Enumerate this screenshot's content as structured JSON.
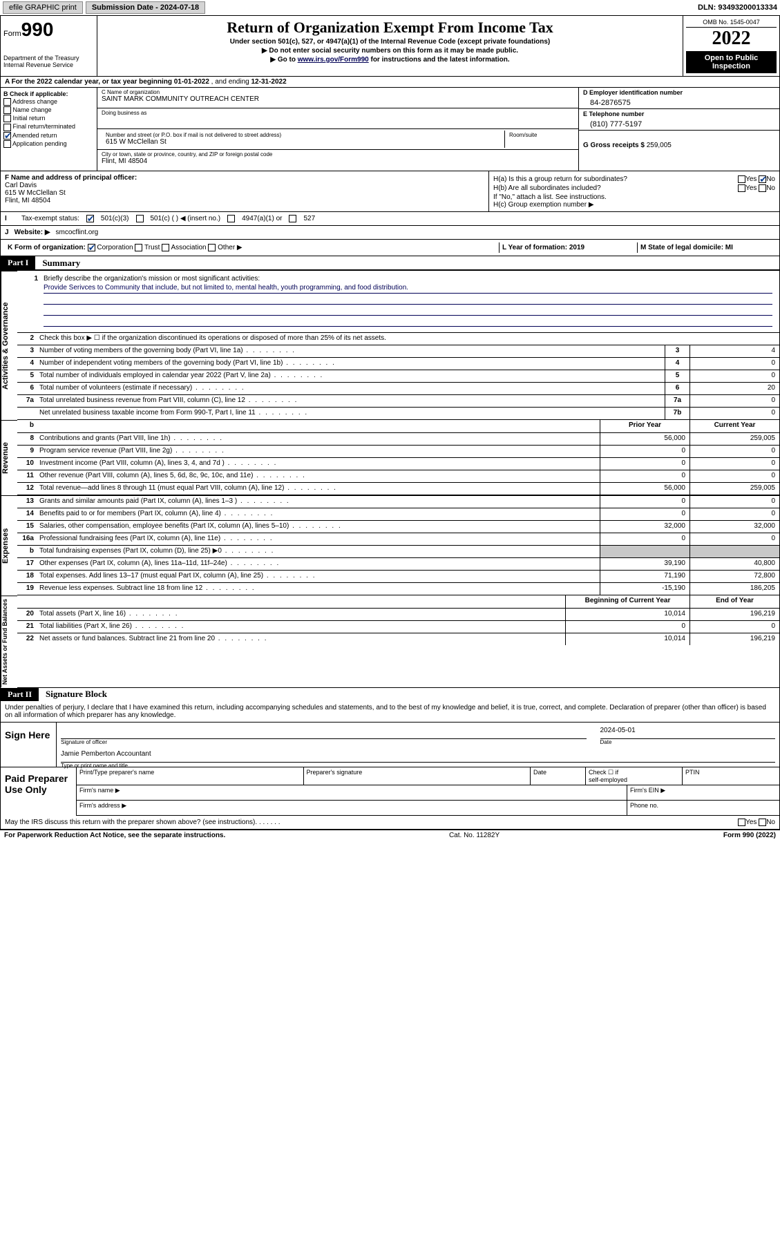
{
  "topbar": {
    "efile": "efile GRAPHIC print",
    "sub_label": "Submission Date - 2024-07-18",
    "dln": "DLN: 93493200013334"
  },
  "header": {
    "form_word": "Form",
    "form_num": "990",
    "dept": "Department of the Treasury\nInternal Revenue Service",
    "title": "Return of Organization Exempt From Income Tax",
    "sub1": "Under section 501(c), 527, or 4947(a)(1) of the Internal Revenue Code (except private foundations)",
    "sub2": "▶ Do not enter social security numbers on this form as it may be made public.",
    "sub3_pre": "▶ Go to ",
    "sub3_link": "www.irs.gov/Form990",
    "sub3_post": " for instructions and the latest information.",
    "omb": "OMB No. 1545-0047",
    "year": "2022",
    "open": "Open to Public Inspection"
  },
  "lineA": {
    "pre": "A For the 2022 calendar year, or tax year beginning ",
    "begin": "01-01-2022",
    "mid": " , and ending ",
    "end": "12-31-2022"
  },
  "B": {
    "hdr": "B Check if applicable:",
    "opts": [
      "Address change",
      "Name change",
      "Initial return",
      "Final return/terminated",
      "Amended return",
      "Application pending"
    ],
    "checked_idx": 4
  },
  "C": {
    "lbl_name": "C Name of organization",
    "name": "SAINT MARK COMMUNITY OUTREACH CENTER",
    "lbl_dba": "Doing business as",
    "lbl_street": "Number and street (or P.O. box if mail is not delivered to street address)",
    "street": "615 W McClellan St",
    "lbl_room": "Room/suite",
    "lbl_city": "City or town, state or province, country, and ZIP or foreign postal code",
    "city": "Flint, MI  48504"
  },
  "D": {
    "lbl": "D Employer identification number",
    "val": "84-2876575"
  },
  "E": {
    "lbl": "E Telephone number",
    "val": "(810) 777-5197"
  },
  "G": {
    "lbl": "G Gross receipts $",
    "val": "259,005"
  },
  "F": {
    "lbl": "F Name and address of principal officer:",
    "name": "Carl Davis",
    "addr1": "615 W McClellan St",
    "addr2": "Flint, MI  48504"
  },
  "H": {
    "ha": "H(a)  Is this a group return for subordinates?",
    "hb": "H(b)  Are all subordinates included?",
    "hb_note": "If \"No,\" attach a list. See instructions.",
    "hc": "H(c)  Group exemption number ▶",
    "yes": "Yes",
    "no": "No"
  },
  "I": {
    "lead": "I",
    "label": "Tax-exempt status:",
    "o1": "501(c)(3)",
    "o2": "501(c) (   ) ◀ (insert no.)",
    "o3": "4947(a)(1) or",
    "o4": "527"
  },
  "J": {
    "lead": "J",
    "label": "Website: ▶",
    "val": "smcocflint.org"
  },
  "K": {
    "label": "K Form of organization:",
    "o1": "Corporation",
    "o2": "Trust",
    "o3": "Association",
    "o4": "Other ▶",
    "L": "L Year of formation: 2019",
    "M": "M State of legal domicile: MI"
  },
  "partI": {
    "tag": "Part I",
    "title": "Summary"
  },
  "mission": {
    "num": "1",
    "lead": "Briefly describe the organization's mission or most significant activities:",
    "text": "Provide Serivces to Community that include, but not limited to, mental health, youth programming, and food distribution."
  },
  "line2": {
    "num": "2",
    "text": "Check this box ▶ ☐  if the organization discontinued its operations or disposed of more than 25% of its net assets."
  },
  "gov_rows": [
    {
      "n": "3",
      "d": "Number of voting members of the governing body (Part VI, line 1a)",
      "c": "3",
      "v": "4"
    },
    {
      "n": "4",
      "d": "Number of independent voting members of the governing body (Part VI, line 1b)",
      "c": "4",
      "v": "0"
    },
    {
      "n": "5",
      "d": "Total number of individuals employed in calendar year 2022 (Part V, line 2a)",
      "c": "5",
      "v": "0"
    },
    {
      "n": "6",
      "d": "Total number of volunteers (estimate if necessary)",
      "c": "6",
      "v": "20"
    },
    {
      "n": "7a",
      "d": "Total unrelated business revenue from Part VIII, column (C), line 12",
      "c": "7a",
      "v": "0"
    },
    {
      "n": "",
      "d": "Net unrelated business taxable income from Form 990-T, Part I, line 11",
      "c": "7b",
      "v": "0"
    }
  ],
  "two_col_hdr": {
    "b": "b",
    "prior": "Prior Year",
    "curr": "Current Year"
  },
  "rev_rows": [
    {
      "n": "8",
      "d": "Contributions and grants (Part VIII, line 1h)",
      "p": "56,000",
      "c": "259,005"
    },
    {
      "n": "9",
      "d": "Program service revenue (Part VIII, line 2g)",
      "p": "0",
      "c": "0"
    },
    {
      "n": "10",
      "d": "Investment income (Part VIII, column (A), lines 3, 4, and 7d )",
      "p": "0",
      "c": "0"
    },
    {
      "n": "11",
      "d": "Other revenue (Part VIII, column (A), lines 5, 6d, 8c, 9c, 10c, and 11e)",
      "p": "0",
      "c": "0"
    },
    {
      "n": "12",
      "d": "Total revenue—add lines 8 through 11 (must equal Part VIII, column (A), line 12)",
      "p": "56,000",
      "c": "259,005"
    }
  ],
  "exp_rows": [
    {
      "n": "13",
      "d": "Grants and similar amounts paid (Part IX, column (A), lines 1–3 )",
      "p": "0",
      "c": "0"
    },
    {
      "n": "14",
      "d": "Benefits paid to or for members (Part IX, column (A), line 4)",
      "p": "0",
      "c": "0"
    },
    {
      "n": "15",
      "d": "Salaries, other compensation, employee benefits (Part IX, column (A), lines 5–10)",
      "p": "32,000",
      "c": "32,000"
    },
    {
      "n": "16a",
      "d": "Professional fundraising fees (Part IX, column (A), line 11e)",
      "p": "0",
      "c": "0"
    },
    {
      "n": "b",
      "d": "Total fundraising expenses (Part IX, column (D), line 25) ▶0",
      "p": "",
      "c": "",
      "shade": true
    },
    {
      "n": "17",
      "d": "Other expenses (Part IX, column (A), lines 11a–11d, 11f–24e)",
      "p": "39,190",
      "c": "40,800"
    },
    {
      "n": "18",
      "d": "Total expenses. Add lines 13–17 (must equal Part IX, column (A), line 25)",
      "p": "71,190",
      "c": "72,800"
    },
    {
      "n": "19",
      "d": "Revenue less expenses. Subtract line 18 from line 12",
      "p": "-15,190",
      "c": "186,205"
    }
  ],
  "na_hdr": {
    "b": "Beginning of Current Year",
    "e": "End of Year"
  },
  "na_rows": [
    {
      "n": "20",
      "d": "Total assets (Part X, line 16)",
      "p": "10,014",
      "c": "196,219"
    },
    {
      "n": "21",
      "d": "Total liabilities (Part X, line 26)",
      "p": "0",
      "c": "0"
    },
    {
      "n": "22",
      "d": "Net assets or fund balances. Subtract line 21 from line 20",
      "p": "10,014",
      "c": "196,219"
    }
  ],
  "vlabels": {
    "gov": "Activities & Governance",
    "rev": "Revenue",
    "exp": "Expenses",
    "na": "Net Assets or\nFund Balances"
  },
  "partII": {
    "tag": "Part II",
    "title": "Signature Block"
  },
  "sig": {
    "intro": "Under penalties of perjury, I declare that I have examined this return, including accompanying schedules and statements, and to the best of my knowledge and belief, it is true, correct, and complete. Declaration of preparer (other than officer) is based on all information of which preparer has any knowledge.",
    "here": "Sign Here",
    "cap1": "Signature of officer",
    "cap2": "Date",
    "date": "2024-05-01",
    "name": "Jamie Pemberton Accountant",
    "cap3": "Type or print name and title"
  },
  "paid": {
    "label": "Paid Preparer Use Only",
    "c1": "Print/Type preparer's name",
    "c2": "Preparer's signature",
    "c3": "Date",
    "c4a": "Check ☐ if",
    "c4b": "self-employed",
    "c5": "PTIN",
    "r2a": "Firm's name  ▶",
    "r2b": "Firm's EIN ▶",
    "r3a": "Firm's address ▶",
    "r3b": "Phone no."
  },
  "footer": {
    "q": "May the IRS discuss this return with the preparer shown above? (see instructions)",
    "yes": "Yes",
    "no": "No",
    "pra": "For Paperwork Reduction Act Notice, see the separate instructions.",
    "cat": "Cat. No. 11282Y",
    "form": "Form 990 (2022)"
  },
  "colors": {
    "link": "#003366",
    "check": "#0a3d8f",
    "shade": "#c8c8c8"
  }
}
